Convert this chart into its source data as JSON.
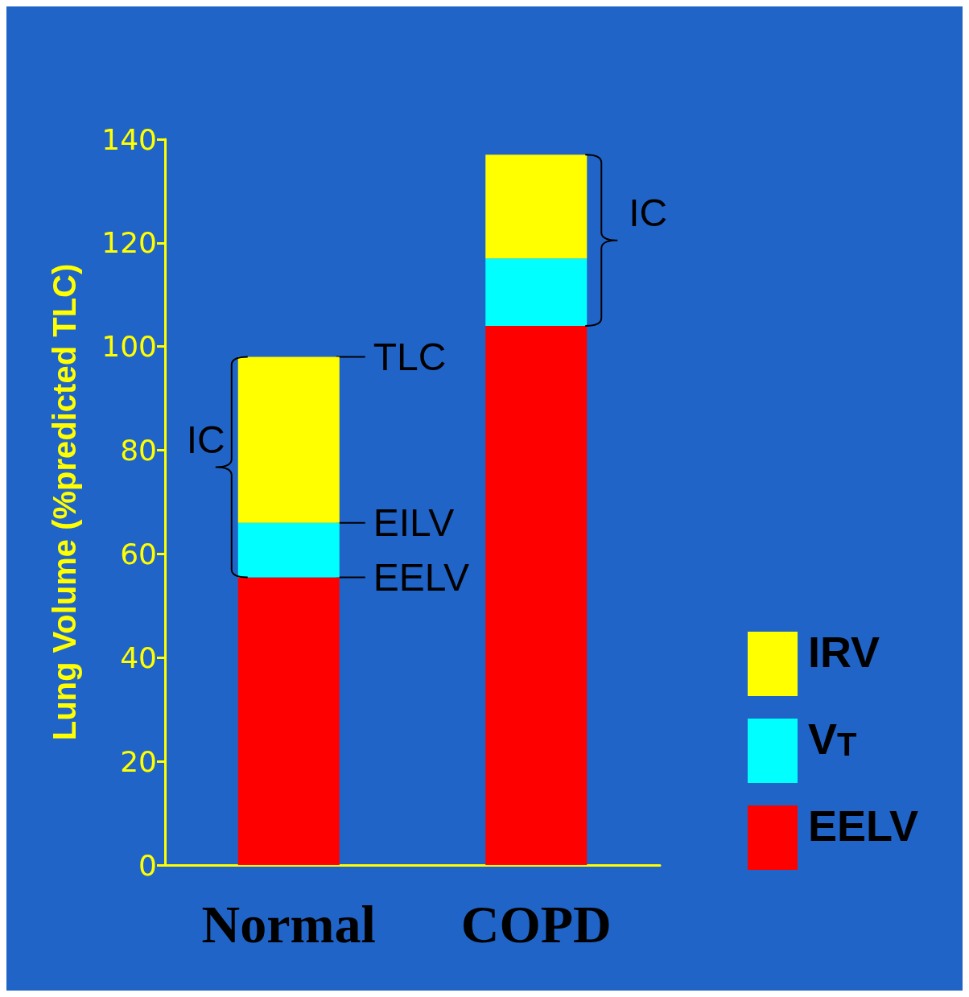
{
  "chart_data": {
    "type": "bar",
    "stacked": true,
    "ylabel": "Lung Volume (%predicted TLC)",
    "categories": [
      "Normal",
      "COPD"
    ],
    "series": [
      {
        "name": "EELV",
        "color": "#ff0000",
        "values": [
          55.5,
          104
        ]
      },
      {
        "name": "V$_{T}$",
        "color": "#00ffff",
        "values": [
          10.5,
          13
        ]
      },
      {
        "name": "IRV",
        "color": "#ffff00",
        "values": [
          32,
          20
        ]
      }
    ],
    "ylim": [
      0,
      140
    ],
    "yticks": [
      0,
      20,
      40,
      60,
      80,
      100,
      120,
      140
    ],
    "grid": false,
    "legend": "right",
    "annotations": [
      {
        "text": "TLC",
        "x": "Normal",
        "y": 98
      },
      {
        "text": "EILV",
        "x": "Normal",
        "y": 66
      },
      {
        "text": "EELV",
        "x": "Normal",
        "y": 55.5
      },
      "IC",
      "IC"
    ]
  }
}
